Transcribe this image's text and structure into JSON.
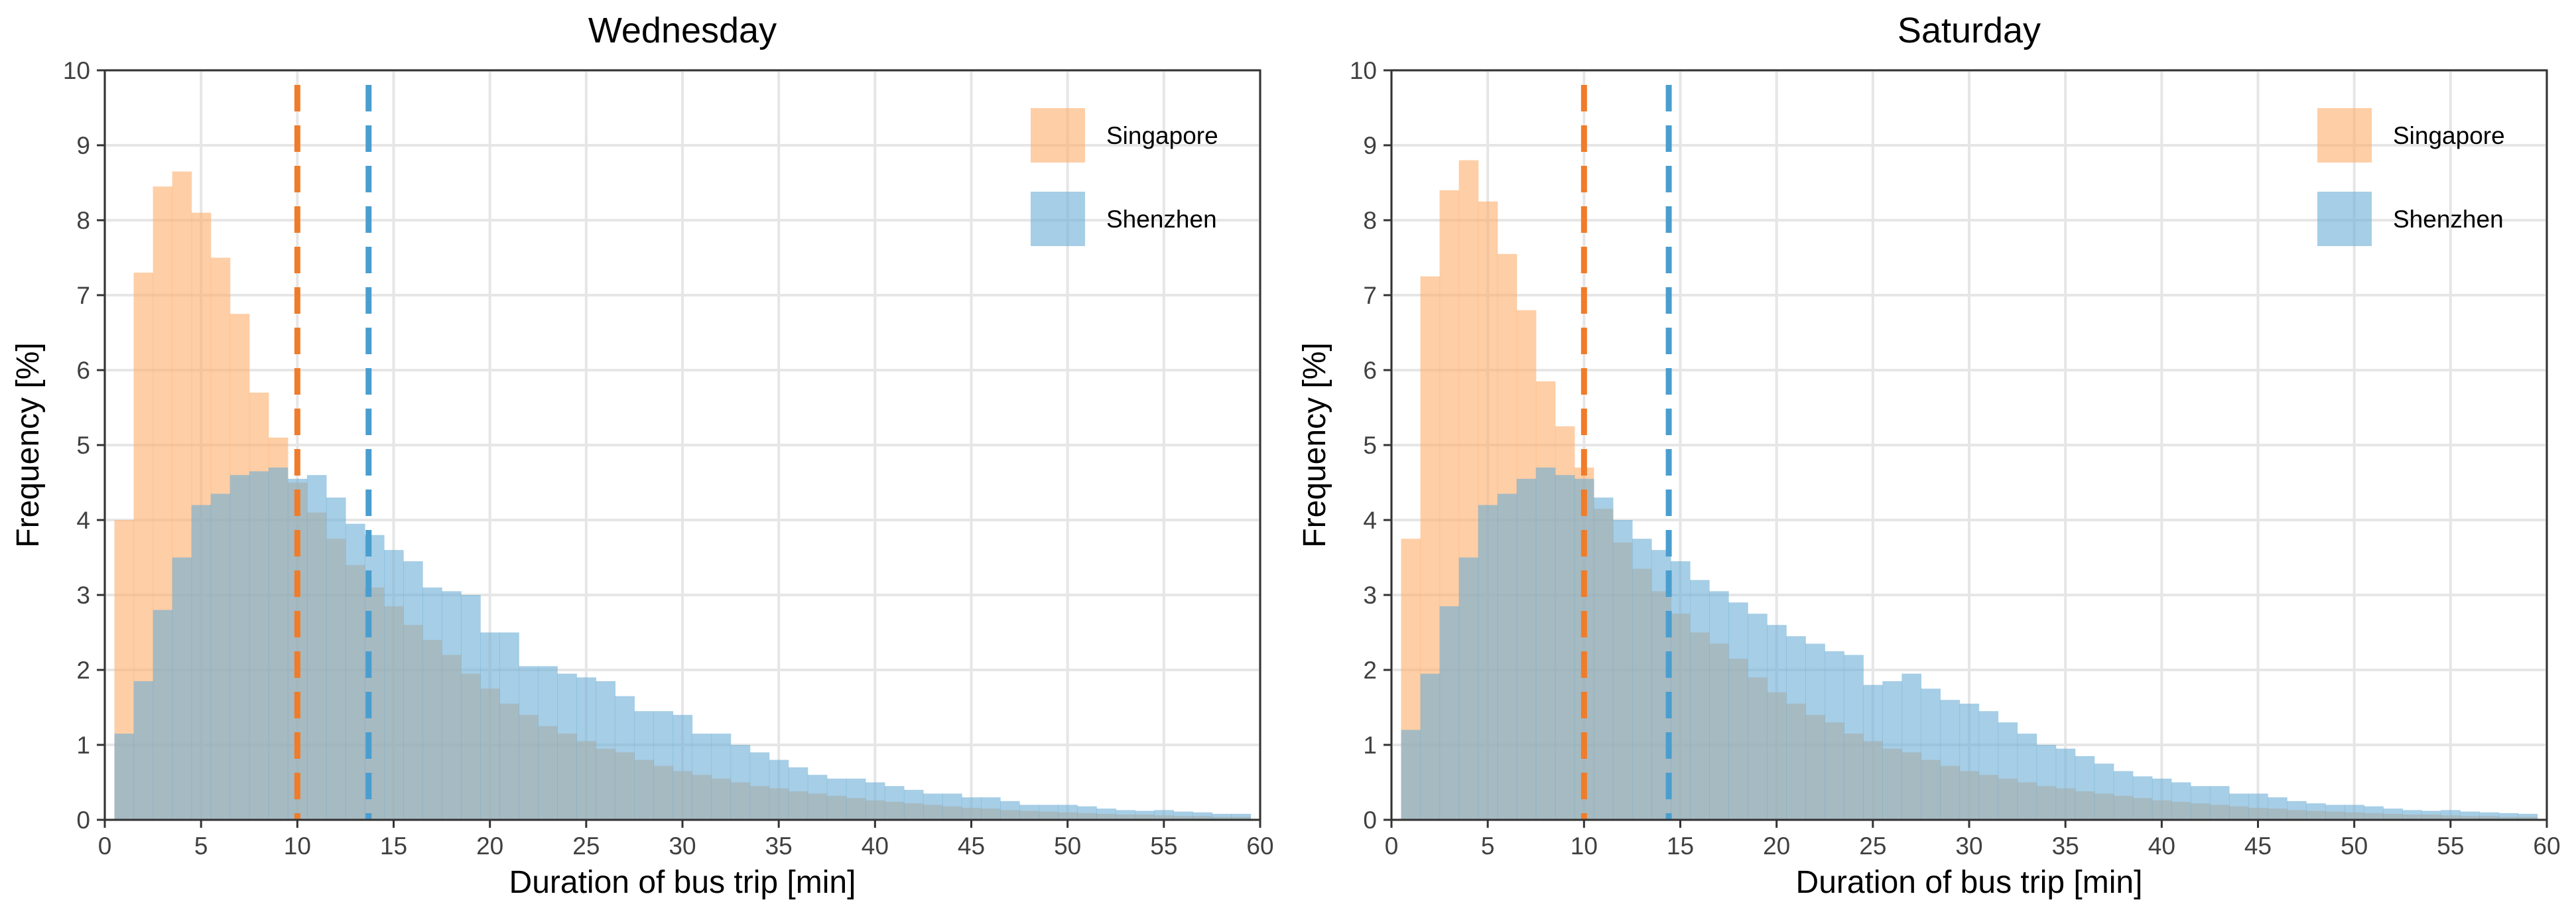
{
  "colors": {
    "singapore": "#fdae6b",
    "shenzhen": "#6baed6",
    "singapore_median": "#f07c2a",
    "shenzhen_median": "#4a9ecf",
    "grid": "#e6e6e6",
    "text": "#000000",
    "tick_text": "#404040"
  },
  "chart_data": [
    {
      "type": "bar",
      "title": "Wednesday",
      "xlabel": "Duration of bus trip [min]",
      "ylabel": "Frequency [%]",
      "xlim": [
        0,
        60
      ],
      "ylim": [
        0,
        10
      ],
      "x_ticks": [
        0,
        5,
        10,
        15,
        20,
        25,
        30,
        35,
        40,
        45,
        50,
        55,
        60
      ],
      "y_ticks": [
        0,
        1,
        2,
        3,
        4,
        5,
        6,
        7,
        8,
        9,
        10
      ],
      "bin_width": 1,
      "bin_start": 0.5,
      "legend_position": "top-right",
      "medians": [
        {
          "series": "Singapore",
          "value": 10.0
        },
        {
          "series": "Shenzhen",
          "value": 13.7
        }
      ],
      "series": [
        {
          "name": "Singapore",
          "values": [
            4.0,
            7.3,
            8.45,
            8.65,
            8.1,
            7.5,
            6.75,
            5.7,
            5.1,
            4.5,
            4.1,
            3.75,
            3.4,
            3.1,
            2.85,
            2.6,
            2.4,
            2.2,
            1.95,
            1.75,
            1.55,
            1.4,
            1.25,
            1.15,
            1.05,
            0.95,
            0.9,
            0.8,
            0.72,
            0.65,
            0.6,
            0.55,
            0.5,
            0.45,
            0.42,
            0.38,
            0.35,
            0.32,
            0.29,
            0.26,
            0.24,
            0.22,
            0.2,
            0.18,
            0.16,
            0.15,
            0.13,
            0.12,
            0.11,
            0.1,
            0.09,
            0.08,
            0.07,
            0.07,
            0.06,
            0.05,
            0.05,
            0.04,
            0.04
          ]
        },
        {
          "name": "Shenzhen",
          "values": [
            1.15,
            1.85,
            2.8,
            3.5,
            4.2,
            4.35,
            4.6,
            4.65,
            4.7,
            4.55,
            4.6,
            4.3,
            3.95,
            3.8,
            3.6,
            3.45,
            3.1,
            3.05,
            3.0,
            2.5,
            2.5,
            2.05,
            2.05,
            1.95,
            1.9,
            1.85,
            1.65,
            1.45,
            1.45,
            1.4,
            1.15,
            1.15,
            1.0,
            0.9,
            0.8,
            0.7,
            0.6,
            0.55,
            0.55,
            0.5,
            0.45,
            0.4,
            0.35,
            0.35,
            0.3,
            0.3,
            0.25,
            0.2,
            0.2,
            0.2,
            0.18,
            0.15,
            0.13,
            0.12,
            0.13,
            0.11,
            0.1,
            0.08,
            0.08
          ]
        }
      ]
    },
    {
      "type": "bar",
      "title": "Saturday",
      "xlabel": "Duration of bus trip [min]",
      "ylabel": "Frequency [%]",
      "xlim": [
        0,
        60
      ],
      "ylim": [
        0,
        10
      ],
      "x_ticks": [
        0,
        5,
        10,
        15,
        20,
        25,
        30,
        35,
        40,
        45,
        50,
        55,
        60
      ],
      "y_ticks": [
        0,
        1,
        2,
        3,
        4,
        5,
        6,
        7,
        8,
        9,
        10
      ],
      "bin_width": 1,
      "bin_start": 0.5,
      "legend_position": "top-right",
      "medians": [
        {
          "series": "Singapore",
          "value": 10.0
        },
        {
          "series": "Shenzhen",
          "value": 14.4
        }
      ],
      "series": [
        {
          "name": "Singapore",
          "values": [
            3.75,
            7.25,
            8.4,
            8.8,
            8.25,
            7.55,
            6.8,
            5.85,
            5.25,
            4.7,
            4.15,
            3.7,
            3.35,
            3.05,
            2.75,
            2.5,
            2.35,
            2.15,
            1.9,
            1.7,
            1.55,
            1.4,
            1.3,
            1.15,
            1.05,
            0.95,
            0.9,
            0.8,
            0.72,
            0.65,
            0.6,
            0.55,
            0.5,
            0.45,
            0.42,
            0.38,
            0.35,
            0.32,
            0.29,
            0.26,
            0.24,
            0.22,
            0.2,
            0.18,
            0.16,
            0.15,
            0.13,
            0.12,
            0.11,
            0.1,
            0.09,
            0.08,
            0.07,
            0.07,
            0.06,
            0.05,
            0.05,
            0.04,
            0.04
          ]
        },
        {
          "name": "Shenzhen",
          "values": [
            1.2,
            1.95,
            2.85,
            3.5,
            4.2,
            4.35,
            4.55,
            4.7,
            4.6,
            4.55,
            4.3,
            4.0,
            3.75,
            3.6,
            3.45,
            3.2,
            3.05,
            2.9,
            2.75,
            2.6,
            2.45,
            2.35,
            2.25,
            2.2,
            1.8,
            1.85,
            1.95,
            1.75,
            1.6,
            1.55,
            1.45,
            1.3,
            1.15,
            1.0,
            0.95,
            0.85,
            0.75,
            0.65,
            0.58,
            0.55,
            0.5,
            0.45,
            0.45,
            0.35,
            0.35,
            0.3,
            0.25,
            0.22,
            0.2,
            0.2,
            0.18,
            0.15,
            0.13,
            0.12,
            0.13,
            0.11,
            0.1,
            0.09,
            0.08
          ]
        }
      ]
    }
  ]
}
